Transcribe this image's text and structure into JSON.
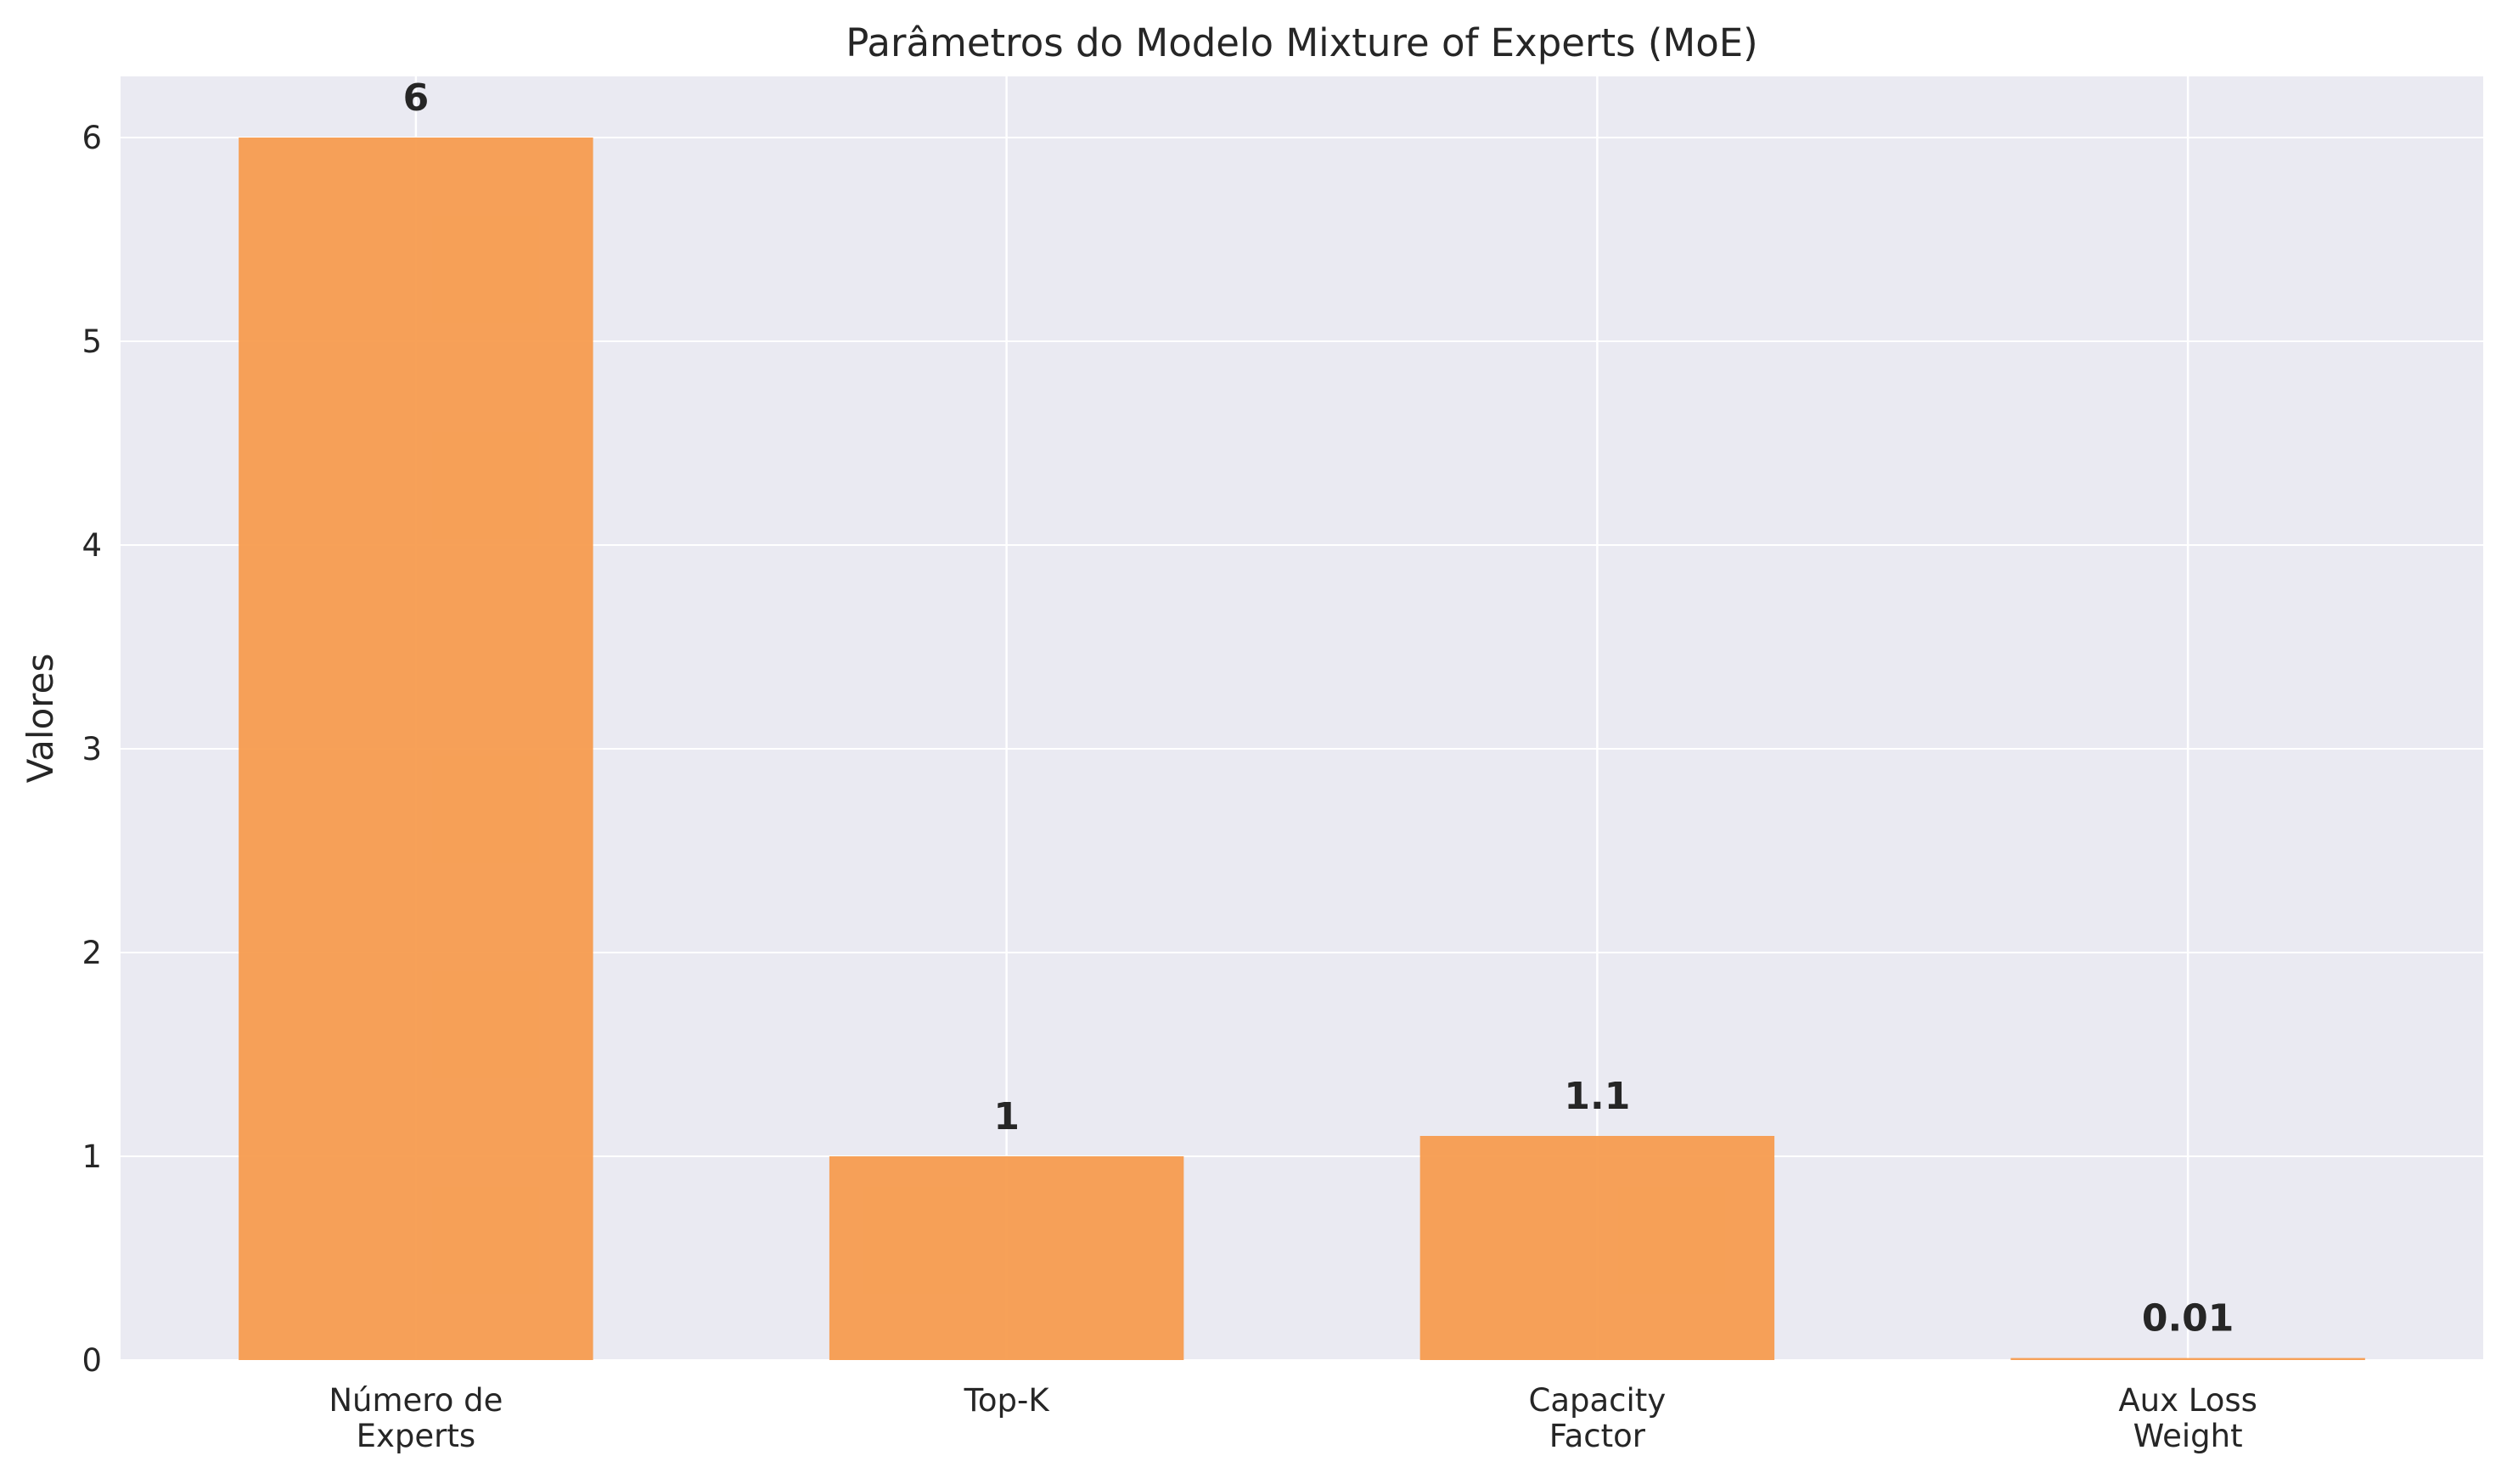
{
  "chart_data": {
    "type": "bar",
    "title": "Parâmetros do Modelo Mixture of Experts (MoE)",
    "xlabel": "",
    "ylabel": "Valores",
    "categories": [
      [
        "Número de",
        "Experts"
      ],
      [
        "Top-K"
      ],
      [
        "Capacity",
        "Factor"
      ],
      [
        "Aux Loss",
        "Weight"
      ]
    ],
    "values": [
      6,
      1,
      1.1,
      0.01
    ],
    "value_labels": [
      "6",
      "1",
      "1.1",
      "0.01"
    ],
    "yticks": [
      0,
      1,
      2,
      3,
      4,
      5,
      6
    ],
    "ylim": [
      0,
      6.3
    ],
    "grid": true,
    "legend": "none",
    "colors": {
      "bar": "#f79c4f",
      "plot_background": "#eaeaf2",
      "grid": "#ffffff",
      "text": "#262626"
    }
  }
}
